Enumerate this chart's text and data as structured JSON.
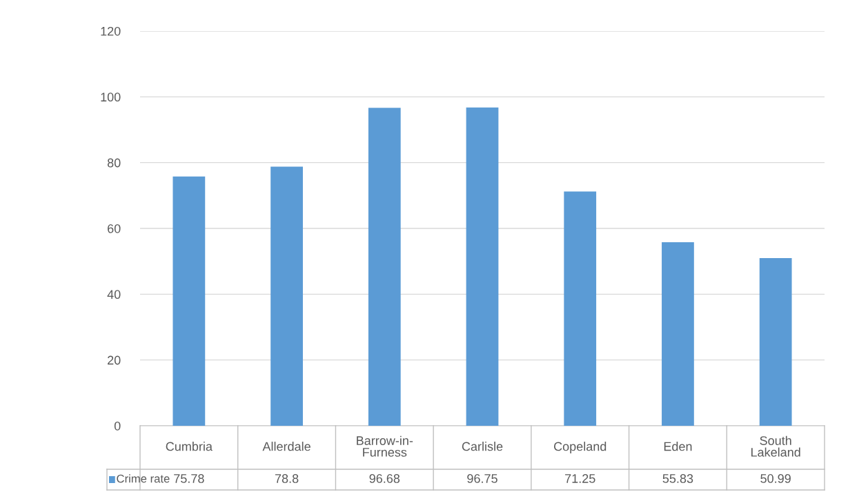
{
  "chart_data": {
    "type": "bar",
    "categories": [
      "Cumbria",
      "Allerdale",
      "Barrow-in-\nFurness",
      "Carlisle",
      "Copeland",
      "Eden",
      "South\nLakeland"
    ],
    "series": [
      {
        "name": "Crime rate",
        "color": "#5b9bd5",
        "values": [
          75.78,
          78.8,
          96.68,
          96.75,
          71.25,
          55.83,
          50.99
        ]
      }
    ],
    "ylim": [
      0,
      120
    ],
    "yticks": [
      0,
      20,
      40,
      60,
      80,
      100,
      120
    ],
    "grid": "y",
    "legend": "bottom",
    "data_labels": true
  }
}
